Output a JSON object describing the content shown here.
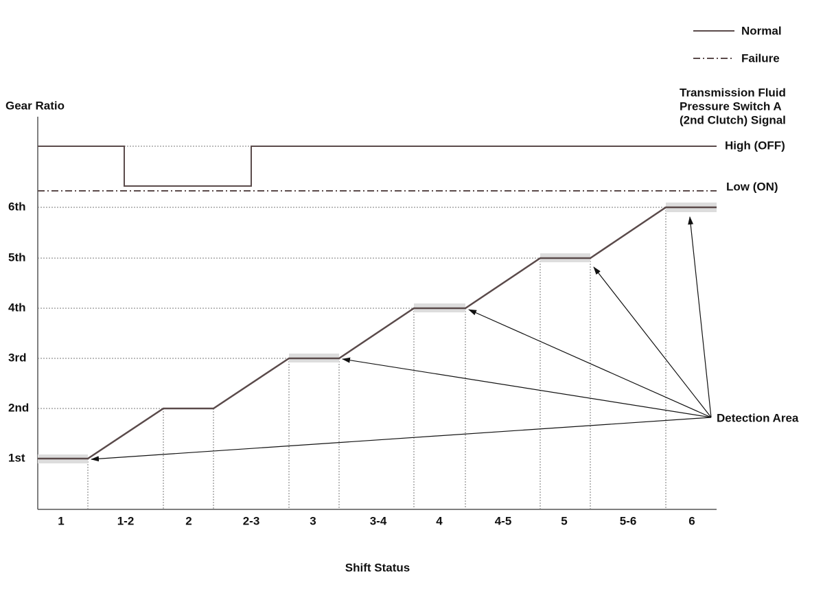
{
  "legend": [
    {
      "label": "Normal"
    },
    {
      "label": "Failure"
    }
  ],
  "y_axis": {
    "title": "Gear Ratio",
    "labels": [
      "1st",
      "2nd",
      "3rd",
      "4th",
      "5th",
      "6th"
    ]
  },
  "x_axis": {
    "title": "Shift Status",
    "labels": [
      "1",
      "1-2",
      "2",
      "2-3",
      "3",
      "3-4",
      "4",
      "4-5",
      "5",
      "5-6",
      "6"
    ]
  },
  "signal": {
    "title_lines": [
      "Transmission Fluid",
      "Pressure Switch A",
      "(2nd Clutch) Signal"
    ],
    "high": "High (OFF)",
    "low": "Low (ON)"
  },
  "annotation": "Detection Area"
}
